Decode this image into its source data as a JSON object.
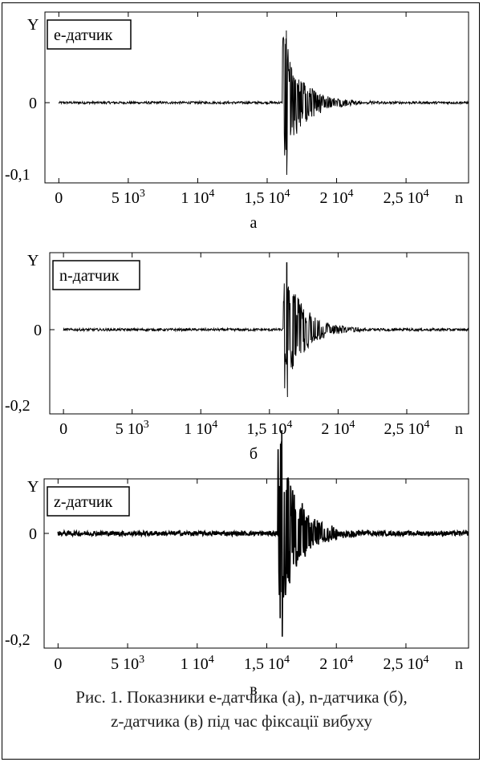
{
  "caption": {
    "line1": "Рис. 1. Показники е-датчика (а), n-датчика (б),",
    "line2": "z-датчика (в) під час фіксації вибуху"
  },
  "chart_data": [
    {
      "type": "line",
      "legend": "е-датчик",
      "panel_label": "а",
      "ylabel": "Y",
      "xlabel": "n",
      "y_tick_labels": [
        "0",
        "-0,1"
      ],
      "x_tick_labels": [
        "0",
        "5 10³",
        "1 10⁴",
        "1,5 10⁴",
        "2 10⁴",
        "2,5 10⁴"
      ],
      "x_ticks": [
        0,
        5000,
        10000,
        15000,
        20000,
        25000
      ],
      "xlim": [
        -1000,
        29500
      ],
      "ylim": [
        -0.1,
        0.085
      ],
      "noise_amplitude": 0.0015,
      "event": {
        "onset": 16100,
        "peak_max": 0.08,
        "peak_min": -0.09,
        "decay_end": 22000
      },
      "series": [
        {
          "values": "waveform"
        }
      ]
    },
    {
      "type": "line",
      "legend": "n-датчик",
      "panel_label": "б",
      "ylabel": "Y",
      "xlabel": "n",
      "y_tick_labels": [
        "0",
        "-0,2"
      ],
      "x_tick_labels": [
        "0",
        "5 10³",
        "1 10⁴",
        "1,5 10⁴",
        "2 10⁴",
        "2,5 10⁴"
      ],
      "x_ticks": [
        0,
        5000,
        10000,
        15000,
        20000,
        25000
      ],
      "xlim": [
        -1000,
        29500
      ],
      "ylim": [
        -0.2,
        0.19
      ],
      "noise_amplitude": 0.003,
      "event": {
        "onset": 16000,
        "peak_max": 0.16,
        "peak_min": -0.16,
        "decay_end": 23000
      },
      "series": [
        {
          "values": "waveform"
        }
      ]
    },
    {
      "type": "line",
      "legend": "z-датчик",
      "panel_label": "в",
      "ylabel": "Y",
      "xlabel": "n",
      "y_tick_labels": [
        "0",
        "-0,2"
      ],
      "x_tick_labels": [
        "0",
        "5 10³",
        "1 10⁴",
        "1,5 10⁴",
        "2 10⁴",
        "2,5 10⁴"
      ],
      "x_ticks": [
        0,
        5000,
        10000,
        15000,
        20000,
        25000
      ],
      "xlim": [
        -1000,
        29500
      ],
      "ylim": [
        -0.2,
        0.19
      ],
      "noise_amplitude": 0.004,
      "event": {
        "onset": 15800,
        "peak_max": 0.16,
        "peak_min": -0.18,
        "decay_end": 21000
      },
      "series": [
        {
          "values": "waveform"
        }
      ]
    }
  ]
}
